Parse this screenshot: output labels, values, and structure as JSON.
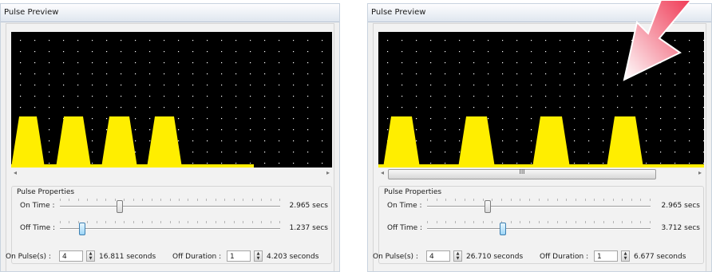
{
  "panels": [
    {
      "title": "Pulse Preview",
      "group_title": "Pulse Properties",
      "on_time_label": "On Time :",
      "off_time_label": "Off Time :",
      "on_time_value": "2.965 secs",
      "off_time_value": "1.237 secs",
      "on_time_fraction": 0.27,
      "off_time_fraction": 0.1,
      "on_pulses_label": "On Pulse(s) :",
      "on_pulses_value": "4",
      "on_pulses_seconds": "16.811 seconds",
      "off_duration_label": "Off Duration :",
      "off_duration_value": "1",
      "off_duration_seconds": "4.203 seconds",
      "scroll_left_glyph": "◂",
      "scroll_right_glyph": "▸"
    },
    {
      "title": "Pulse Preview",
      "group_title": "Pulse Properties",
      "on_time_label": "On Time :",
      "off_time_label": "Off Time :",
      "on_time_value": "2.965 secs",
      "off_time_value": "3.712 secs",
      "on_time_fraction": 0.27,
      "off_time_fraction": 0.34,
      "on_pulses_label": "On Pulse(s) :",
      "on_pulses_value": "4",
      "on_pulses_seconds": "26.710 seconds",
      "off_duration_label": "Off Duration :",
      "off_duration_value": "1",
      "off_duration_seconds": "6.677 seconds",
      "scroll_left_glyph": "◂",
      "scroll_right_glyph": "▸",
      "scroll_grip": "III"
    }
  ],
  "colors": {
    "pulse": "#ffee00",
    "scope_bg": "#000000",
    "grid_dot": "#ffffff",
    "arrow": "#f25a6e"
  },
  "icons": {
    "annotation": "pointer-arrow-icon",
    "spin": "spin-up-down-icon"
  }
}
